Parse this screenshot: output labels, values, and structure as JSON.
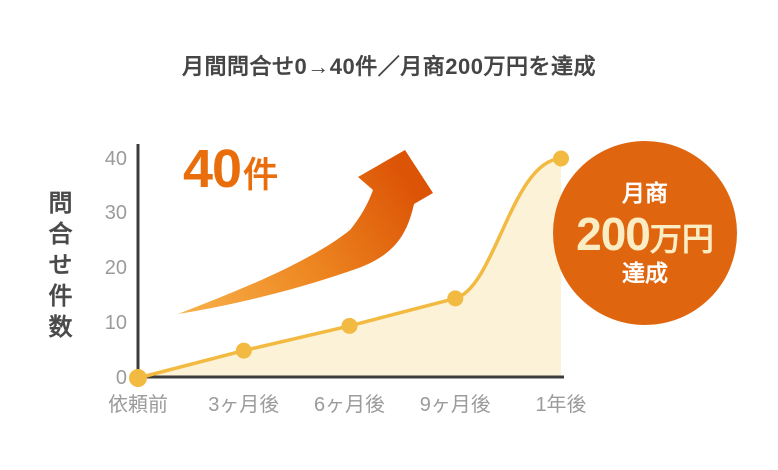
{
  "header": {
    "title": "月間問合せ0→40件／月商200万円を達成"
  },
  "chart_data": {
    "type": "area",
    "title": "月間問合せ0→40件／月商200万円を達成",
    "xlabel": "",
    "ylabel": "問合せ件数",
    "categories": [
      "依頼前",
      "3ヶ月後",
      "6ヶ月後",
      "9ヶ月後",
      "1年後"
    ],
    "values": [
      0,
      5,
      9.5,
      14.5,
      40
    ],
    "yticks": [
      40,
      30,
      20,
      10,
      0
    ],
    "ylim": [
      0,
      43
    ],
    "grid": false,
    "legend": false,
    "colors": {
      "line": "#F2BA41",
      "dot": "#F2BA41",
      "fill": "#FCF2D7",
      "axis": "#3C3C3C",
      "tick_label": "#9B9B9B",
      "title_text": "#454545",
      "callout_text": "#E96E0B",
      "arrow_gradient": [
        "#F8B04A",
        "#ED8620",
        "#DC5406"
      ],
      "badge_bg": "#E0650F",
      "badge_amount_text": "#FAEDC4"
    }
  },
  "callout": {
    "value": "40",
    "unit": "件"
  },
  "badge": {
    "label_top": "月商",
    "amount": "200",
    "amount_unit": "万円",
    "label_bottom": "達成"
  }
}
